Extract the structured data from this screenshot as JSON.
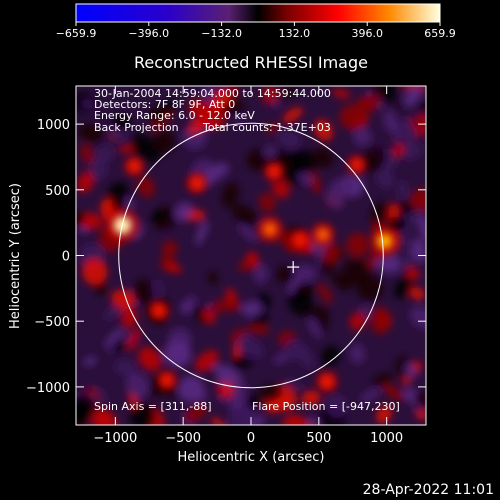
{
  "chart_data": {
    "type": "heatmap",
    "title": "Reconstructed RHESSI Image",
    "xlabel": "Heliocentric X (arcsec)",
    "ylabel": "Heliocentric Y (arcsec)",
    "xlim": [
      -1290,
      1290
    ],
    "ylim": [
      -1290,
      1290
    ],
    "xticks": [
      -1000,
      -500,
      0,
      500,
      1000
    ],
    "xtick_labels": [
      "−1000",
      "−500",
      "0",
      "500",
      "1000"
    ],
    "yticks": [
      -1000,
      -500,
      0,
      500,
      1000
    ],
    "ytick_labels": [
      "−1000",
      "−500",
      "0",
      "500",
      "1000"
    ],
    "colorbar": {
      "min": -659.9,
      "max": 659.9,
      "tick_values": [
        -659.9,
        -396.0,
        -132.0,
        132.0,
        396.0,
        659.9
      ],
      "tick_labels": [
        "−659.9",
        "−396.0",
        "−132.0",
        "132.0",
        "396.0",
        "659.9"
      ]
    },
    "annotations": [
      "30-Jan-2004 14:59:04.000 to 14:59:44.000",
      "Detectors: 7F 8F 9F, Att 0",
      "Energy Range: 6.0 - 12.0 keV",
      "Back Projection",
      "Total counts: 1.37E+03"
    ],
    "spin_axis_label": "Spin Axis = [311,-88]",
    "flare_position_label": "Flare Position = [-947,230]",
    "solar_limb_radius_arcsec": 975,
    "spin_axis": [
      311,
      -88
    ],
    "flare_position": [
      -947,
      230
    ],
    "hot_spots": [
      {
        "x": -947,
        "y": 230,
        "value": 640
      },
      {
        "x": 985,
        "y": 110,
        "value": 520
      },
      {
        "x": 140,
        "y": 200,
        "value": 430
      },
      {
        "x": 530,
        "y": 160,
        "value": 360
      },
      {
        "x": 360,
        "y": 120,
        "value": 300
      },
      {
        "x": -680,
        "y": -420,
        "value": 300
      },
      {
        "x": -860,
        "y": 680,
        "value": 260
      },
      {
        "x": 780,
        "y": 690,
        "value": 240
      },
      {
        "x": -400,
        "y": 550,
        "value": 280
      },
      {
        "x": 170,
        "y": 640,
        "value": 260
      },
      {
        "x": 560,
        "y": -960,
        "value": 300
      },
      {
        "x": -620,
        "y": -950,
        "value": 260
      }
    ]
  },
  "footer": {
    "timestamp": "28-Apr-2022 11:01"
  },
  "colors": {
    "limb": "#ffffff",
    "background": "#000000"
  }
}
